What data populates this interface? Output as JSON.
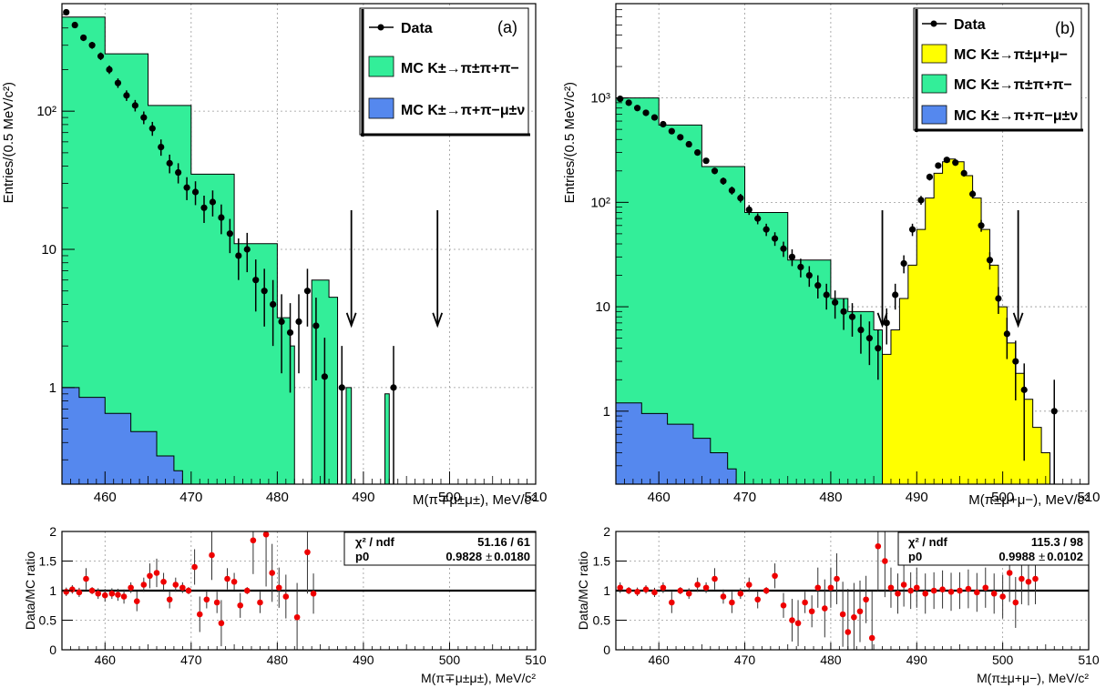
{
  "colors": {
    "pipipi": "#33ee99",
    "pipimunu": "#5588ee",
    "pimumu": "#ffff00",
    "data": "#000000",
    "ratio_points": "#ee0000"
  },
  "chart_data": [
    {
      "panel": "a",
      "type": "histogram",
      "panel_label": "(a)",
      "xlabel": "M(π∓μ±μ±), MeV/c²",
      "ylabel": "Entries/(0.5 MeV/c²)",
      "xlim": [
        455,
        510
      ],
      "ylim": [
        0.2,
        600
      ],
      "log_y": true,
      "x_ticks": [
        "460",
        "470",
        "480",
        "490",
        "500",
        "510"
      ],
      "y_ticks": [
        "1",
        "10",
        "10²"
      ],
      "grid": true,
      "legend_placement": "top-right",
      "legend": [
        "Data",
        "MC K±→π±π+π−",
        "MC K±→π+π−μ±ν"
      ],
      "signal_window_arrows": [
        488.6,
        498.6
      ],
      "stack": {
        "pipipi": [
          [
            455,
            480
          ],
          [
            460,
            260
          ],
          [
            465,
            110
          ],
          [
            470,
            35
          ],
          [
            475,
            11
          ],
          [
            480,
            3.2
          ],
          [
            481.5,
            2.0
          ],
          [
            482,
            0.2
          ],
          [
            484,
            6
          ],
          [
            486,
            4.5
          ],
          [
            487,
            0.2
          ],
          [
            488,
            1.0
          ],
          [
            488.6,
            0.2
          ],
          [
            492.5,
            0.9
          ],
          [
            493,
            0.2
          ]
        ],
        "pipimunu": [
          [
            455,
            1.0
          ],
          [
            457,
            0.85
          ],
          [
            460,
            0.65
          ],
          [
            463,
            0.48
          ],
          [
            466,
            0.32
          ],
          [
            468,
            0.25
          ],
          [
            469,
            0.2
          ]
        ]
      },
      "data_points": [
        [
          455.5,
          520
        ],
        [
          456.5,
          420
        ],
        [
          457.5,
          340
        ],
        [
          458.5,
          300
        ],
        [
          459.5,
          250
        ],
        [
          460.5,
          200
        ],
        [
          461.5,
          160
        ],
        [
          462.5,
          130
        ],
        [
          463.5,
          110
        ],
        [
          464.5,
          90
        ],
        [
          465.5,
          75
        ],
        [
          466.5,
          55
        ],
        [
          467.5,
          42
        ],
        [
          468.5,
          36
        ],
        [
          469.5,
          28
        ],
        [
          470.5,
          26
        ],
        [
          471.5,
          20
        ],
        [
          472.5,
          22
        ],
        [
          473.5,
          17
        ],
        [
          474.5,
          13
        ],
        [
          475.5,
          9
        ],
        [
          476.5,
          10
        ],
        [
          477.5,
          6
        ],
        [
          478.5,
          5
        ],
        [
          479.5,
          4
        ],
        [
          480.5,
          3
        ],
        [
          481.5,
          2.5
        ],
        [
          482.5,
          3
        ],
        [
          483.5,
          5
        ],
        [
          484.5,
          2.8
        ],
        [
          485.5,
          1.2
        ],
        [
          487.5,
          1.0
        ],
        [
          493.5,
          1.0
        ]
      ]
    },
    {
      "panel": "a-ratio",
      "type": "scatter",
      "ylabel": "Data/MC ratio",
      "xlabel": "M(π∓μ±μ±), MeV/c²",
      "xlim": [
        455,
        510
      ],
      "ylim": [
        0,
        2
      ],
      "x_ticks": [
        "460",
        "470",
        "480",
        "490",
        "500",
        "510"
      ],
      "y_ticks": [
        "0",
        "0.5",
        "1",
        "1.5",
        "2"
      ],
      "grid": true,
      "fit_line": 1,
      "fit_stats": {
        "chi2_label": "χ² / ndf",
        "chi2_value": "51.16 / 61",
        "p0_label": "p0",
        "p0_value": "0.9828",
        "pm": "±",
        "p0_error": "0.0180"
      },
      "points": [
        [
          455.5,
          0.98
        ],
        [
          456.2,
          1.02
        ],
        [
          457,
          0.97
        ],
        [
          457.8,
          1.2
        ],
        [
          458.5,
          1.0
        ],
        [
          459.2,
          0.95
        ],
        [
          460,
          0.92
        ],
        [
          460.8,
          0.95
        ],
        [
          461.5,
          0.93
        ],
        [
          462.2,
          0.9
        ],
        [
          463,
          1.05
        ],
        [
          463.7,
          0.82
        ],
        [
          464.5,
          1.1
        ],
        [
          465.2,
          1.25
        ],
        [
          466,
          1.3
        ],
        [
          466.8,
          1.15
        ],
        [
          467.5,
          0.85
        ],
        [
          468.2,
          1.1
        ],
        [
          469,
          1.05
        ],
        [
          469.7,
          1.0
        ],
        [
          470.4,
          1.4
        ],
        [
          471,
          0.6
        ],
        [
          471.8,
          0.85
        ],
        [
          472.4,
          1.6
        ],
        [
          473,
          0.8
        ],
        [
          473.5,
          0.45
        ],
        [
          474.2,
          1.2
        ],
        [
          475,
          1.15
        ],
        [
          475.7,
          0.75
        ],
        [
          476.5,
          1.0
        ],
        [
          477.2,
          1.85
        ],
        [
          478,
          0.8
        ],
        [
          478.7,
          1.95
        ],
        [
          479.4,
          1.3
        ],
        [
          480.2,
          1.05
        ],
        [
          481,
          0.9
        ],
        [
          482.3,
          0.55
        ],
        [
          483.5,
          1.65
        ],
        [
          484.2,
          0.95
        ]
      ]
    },
    {
      "panel": "b",
      "type": "histogram",
      "panel_label": "(b)",
      "xlabel": "M(π±μ+μ−), MeV/c²",
      "ylabel": "Entries/(0.5 MeV/c²)",
      "xlim": [
        455,
        510
      ],
      "ylim": [
        0.2,
        8000
      ],
      "log_y": true,
      "x_ticks": [
        "460",
        "470",
        "480",
        "490",
        "500",
        "510"
      ],
      "y_ticks": [
        "1",
        "10",
        "10²",
        "10³"
      ],
      "grid": true,
      "legend_placement": "top-right",
      "legend": [
        "Data",
        "MC K±→π±μ+μ−",
        "MC K±→π±π+π−",
        "MC K±→π+π−μ±ν"
      ],
      "signal_window_arrows": [
        486,
        501.8
      ],
      "stack": {
        "pipipi": [
          [
            455,
            1000
          ],
          [
            460,
            550
          ],
          [
            465,
            220
          ],
          [
            470,
            80
          ],
          [
            475,
            28
          ],
          [
            480,
            12
          ],
          [
            482,
            9
          ],
          [
            485,
            6
          ],
          [
            486,
            1.3
          ],
          [
            487,
            1.3
          ],
          [
            488,
            0.2
          ],
          [
            489,
            0.9
          ],
          [
            489.5,
            0.2
          ],
          [
            490.5,
            0.9
          ],
          [
            491,
            0.2
          ],
          [
            492,
            0.9
          ],
          [
            492.5,
            0.2
          ]
        ],
        "pimumu": [
          [
            485,
            0.2
          ],
          [
            486,
            3.5
          ],
          [
            487,
            6
          ],
          [
            488,
            12
          ],
          [
            489,
            25
          ],
          [
            490,
            55
          ],
          [
            491,
            110
          ],
          [
            492,
            190
          ],
          [
            493,
            245
          ],
          [
            493.8,
            260
          ],
          [
            494.5,
            245
          ],
          [
            495.5,
            180
          ],
          [
            496.5,
            110
          ],
          [
            497.5,
            55
          ],
          [
            498.5,
            25
          ],
          [
            499.5,
            10
          ],
          [
            500.5,
            4.5
          ],
          [
            501.5,
            2.3
          ],
          [
            502.5,
            1.3
          ],
          [
            503.5,
            0.7
          ],
          [
            504.5,
            0.4
          ],
          [
            505.5,
            0.2
          ]
        ],
        "pipimunu": [
          [
            455,
            1.2
          ],
          [
            458,
            0.95
          ],
          [
            461,
            0.75
          ],
          [
            464,
            0.55
          ],
          [
            466,
            0.4
          ],
          [
            468,
            0.28
          ],
          [
            469,
            0.2
          ]
        ]
      },
      "data_points": [
        [
          455.5,
          980
        ],
        [
          456.5,
          900
        ],
        [
          457.5,
          800
        ],
        [
          458.5,
          720
        ],
        [
          459.5,
          650
        ],
        [
          460.5,
          560
        ],
        [
          461.5,
          480
        ],
        [
          462.5,
          420
        ],
        [
          463.5,
          360
        ],
        [
          464.5,
          300
        ],
        [
          465.5,
          250
        ],
        [
          466.5,
          200
        ],
        [
          467.5,
          160
        ],
        [
          468.5,
          130
        ],
        [
          469.5,
          110
        ],
        [
          470.5,
          85
        ],
        [
          471.5,
          70
        ],
        [
          472.5,
          55
        ],
        [
          473.5,
          45
        ],
        [
          474.5,
          36
        ],
        [
          475.5,
          30
        ],
        [
          476.5,
          24
        ],
        [
          477.5,
          20
        ],
        [
          478.5,
          16
        ],
        [
          479.5,
          13
        ],
        [
          480.5,
          11
        ],
        [
          481.5,
          9
        ],
        [
          482.5,
          8
        ],
        [
          483.5,
          6
        ],
        [
          484.5,
          5
        ],
        [
          485.5,
          4
        ],
        [
          486.5,
          7
        ],
        [
          487.5,
          13
        ],
        [
          488.5,
          26
        ],
        [
          489.5,
          55
        ],
        [
          490.5,
          105
        ],
        [
          491.5,
          175
        ],
        [
          492.5,
          225
        ],
        [
          493.5,
          255
        ],
        [
          494.5,
          240
        ],
        [
          495.5,
          190
        ],
        [
          496.5,
          120
        ],
        [
          497.5,
          60
        ],
        [
          498.5,
          28
        ],
        [
          499.5,
          12
        ],
        [
          500.5,
          5.5
        ],
        [
          501.5,
          3
        ],
        [
          502.5,
          1.6
        ],
        [
          506,
          1.0
        ]
      ]
    },
    {
      "panel": "b-ratio",
      "type": "scatter",
      "ylabel": "Data/MC ratio",
      "xlabel": "M(π±μ+μ−), MeV/c²",
      "xlim": [
        455,
        510
      ],
      "ylim": [
        0,
        2
      ],
      "x_ticks": [
        "460",
        "470",
        "480",
        "490",
        "500",
        "510"
      ],
      "y_ticks": [
        "0",
        "0.5",
        "1",
        "1.5",
        "2"
      ],
      "grid": true,
      "fit_line": 1,
      "fit_stats": {
        "chi2_label": "χ² / ndf",
        "chi2_value": "115.3 / 98",
        "p0_label": "p0",
        "p0_value": "0.9988",
        "pm": "±",
        "p0_error": "0.0102"
      },
      "points": [
        [
          455.5,
          1.05
        ],
        [
          456.5,
          1.0
        ],
        [
          457.5,
          0.98
        ],
        [
          458.5,
          1.02
        ],
        [
          459.5,
          0.97
        ],
        [
          460.5,
          1.05
        ],
        [
          461.5,
          0.8
        ],
        [
          462.5,
          1.0
        ],
        [
          463.5,
          0.95
        ],
        [
          464.5,
          1.1
        ],
        [
          465.5,
          1.05
        ],
        [
          466.5,
          1.2
        ],
        [
          467.5,
          0.9
        ],
        [
          468.5,
          0.8
        ],
        [
          469.5,
          0.95
        ],
        [
          470.5,
          1.1
        ],
        [
          471.5,
          0.85
        ],
        [
          472.5,
          1.0
        ],
        [
          473.5,
          1.25
        ],
        [
          474.5,
          0.75
        ],
        [
          475.5,
          0.5
        ],
        [
          476.2,
          0.45
        ],
        [
          477,
          0.8
        ],
        [
          477.8,
          0.65
        ],
        [
          478.5,
          1.05
        ],
        [
          479.3,
          0.7
        ],
        [
          480,
          1.05
        ],
        [
          480.7,
          1.2
        ],
        [
          481.4,
          0.6
        ],
        [
          482,
          0.3
        ],
        [
          482.7,
          0.55
        ],
        [
          483.4,
          0.65
        ],
        [
          484.1,
          0.85
        ],
        [
          484.8,
          0.2
        ],
        [
          485.5,
          1.75
        ],
        [
          486.3,
          1.5
        ],
        [
          487,
          1.05
        ],
        [
          487.8,
          0.95
        ],
        [
          488.5,
          1.1
        ],
        [
          489.3,
          1.0
        ],
        [
          490,
          1.05
        ],
        [
          491,
          0.95
        ],
        [
          492,
          1.0
        ],
        [
          493,
          1.02
        ],
        [
          494,
          0.98
        ],
        [
          495,
          1.0
        ],
        [
          496,
          1.03
        ],
        [
          497,
          0.97
        ],
        [
          498,
          1.05
        ],
        [
          499,
          0.95
        ],
        [
          500,
          0.9
        ],
        [
          500.8,
          1.3
        ],
        [
          501.5,
          0.8
        ],
        [
          502.2,
          1.2
        ],
        [
          503,
          1.15
        ],
        [
          503.8,
          1.2
        ]
      ]
    }
  ]
}
